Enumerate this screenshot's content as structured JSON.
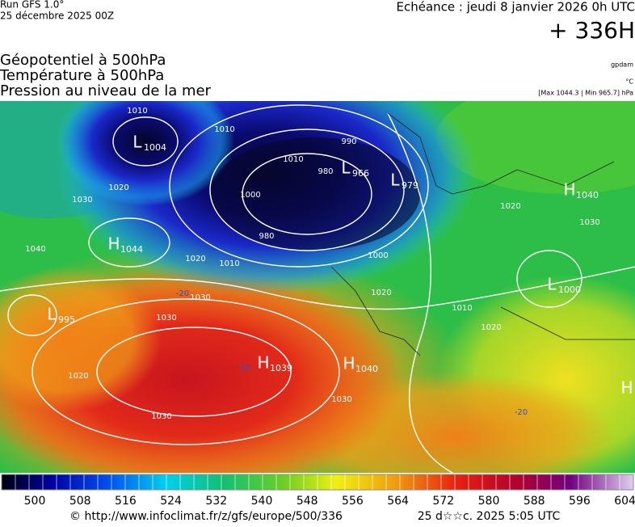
{
  "header": {
    "run": "Run GFS 1.0°",
    "date": "25 décembre 2025 00Z",
    "echeance": "Echéance : jeudi 8 janvier 2026 0h UTC",
    "lead": "+ 336H",
    "titles": [
      "Géopotentiel à 500hPa",
      "Température à 500hPa",
      "Pression au niveau de la mer"
    ],
    "units": [
      "gpdam",
      "°C",
      "[Max 1044.3 | Min 965.7] hPa"
    ]
  },
  "map": {
    "centers": [
      {
        "letter": "L",
        "value": "1004"
      },
      {
        "letter": "L",
        "value": "966"
      },
      {
        "letter": "L",
        "value": "979"
      },
      {
        "letter": "H",
        "value": "1040"
      },
      {
        "letter": "H",
        "value": "1044"
      },
      {
        "letter": "L",
        "value": "995"
      },
      {
        "letter": "H",
        "value": "1039"
      },
      {
        "letter": "H",
        "value": "1040"
      },
      {
        "letter": "L",
        "value": "1000"
      },
      {
        "letter": "H",
        "value": ""
      }
    ],
    "isobar_labels": [
      "1010",
      "1010",
      "990",
      "1010",
      "980",
      "1000",
      "980",
      "1020",
      "1030",
      "1040",
      "1020",
      "1010",
      "1000",
      "1030",
      "1030",
      "1020",
      "1030",
      "1030",
      "1020",
      "1030",
      "1010",
      "1020",
      "1020"
    ],
    "temperature_labels": [
      "-20",
      "-20",
      "-20"
    ]
  },
  "colorbar": {
    "labels": [
      "500",
      "508",
      "516",
      "524",
      "532",
      "540",
      "548",
      "556",
      "564",
      "572",
      "580",
      "588",
      "596",
      "604"
    ]
  },
  "footer": {
    "url": "© http://www.infoclimat.fr/z/gfs/europe/500/336",
    "stamp": "25 d☆☆c. 2025  5:05 UTC"
  }
}
